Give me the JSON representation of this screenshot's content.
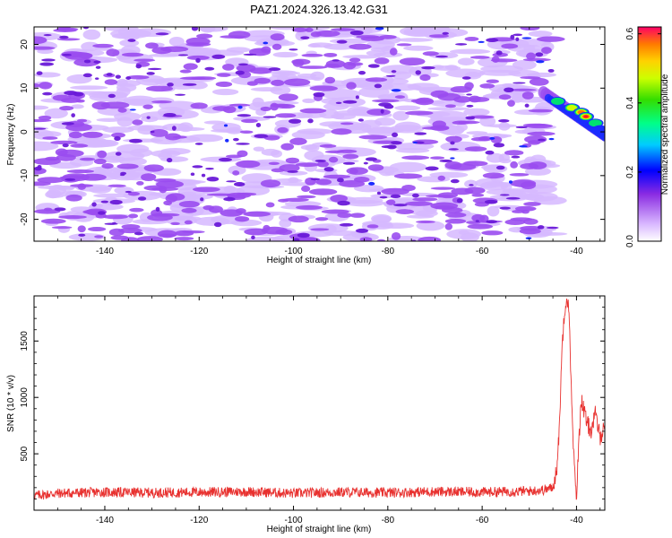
{
  "title": "PAZ1.2024.326.13.42.G31",
  "chart_data": [
    {
      "type": "heatmap",
      "xlabel": "Height of straight line (km)",
      "ylabel": "Frequency (Hz)",
      "xlim": [
        -155,
        -34
      ],
      "ylim": [
        -25,
        24
      ],
      "xticks": [
        -140,
        -120,
        -100,
        -80,
        -60,
        -40
      ],
      "yticks": [
        -20,
        -10,
        0,
        10,
        20
      ],
      "colorbar": {
        "label": "Normalized spectral amplitude",
        "range": [
          0,
          0.62
        ],
        "ticks": [
          "0.0",
          "0.2",
          "0.4",
          "0.6"
        ],
        "tick_values": [
          0,
          0.2,
          0.4,
          0.6
        ]
      },
      "hotspots": [
        {
          "x": -44,
          "y": 7,
          "value": 0.3
        },
        {
          "x": -41,
          "y": 5.5,
          "value": 0.45
        },
        {
          "x": -39,
          "y": 4.5,
          "value": 0.55
        },
        {
          "x": -38,
          "y": 3.5,
          "value": 0.62
        },
        {
          "x": -36,
          "y": 2,
          "value": 0.35
        },
        {
          "x": -35,
          "y": 0.5,
          "value": 0.25
        }
      ]
    },
    {
      "type": "line",
      "xlabel": "Height of straight line (km)",
      "ylabel": "SNR (10 * v/v)",
      "xlim": [
        -155,
        -34
      ],
      "ylim": [
        0,
        1900
      ],
      "xticks": [
        -140,
        -120,
        -100,
        -80,
        -60,
        -40
      ],
      "yticks": [
        500,
        1000,
        1500
      ],
      "color": "#e8312f",
      "series": [
        {
          "x": [
            -155,
            -150,
            -140,
            -130,
            -120,
            -110,
            -100,
            -90,
            -80,
            -70,
            -60,
            -50,
            -47,
            -45,
            -44,
            -43.5,
            -43,
            -42.5,
            -42,
            -41.5,
            -41,
            -40.5,
            -40,
            -39.5,
            -39,
            -38,
            -37,
            -36,
            -35,
            -34
          ],
          "y": [
            130,
            150,
            160,
            155,
            160,
            165,
            150,
            160,
            155,
            165,
            160,
            170,
            180,
            200,
            420,
            900,
            1500,
            1800,
            1900,
            1700,
            900,
            400,
            100,
            600,
            1000,
            800,
            700,
            850,
            650,
            750
          ]
        }
      ]
    }
  ]
}
